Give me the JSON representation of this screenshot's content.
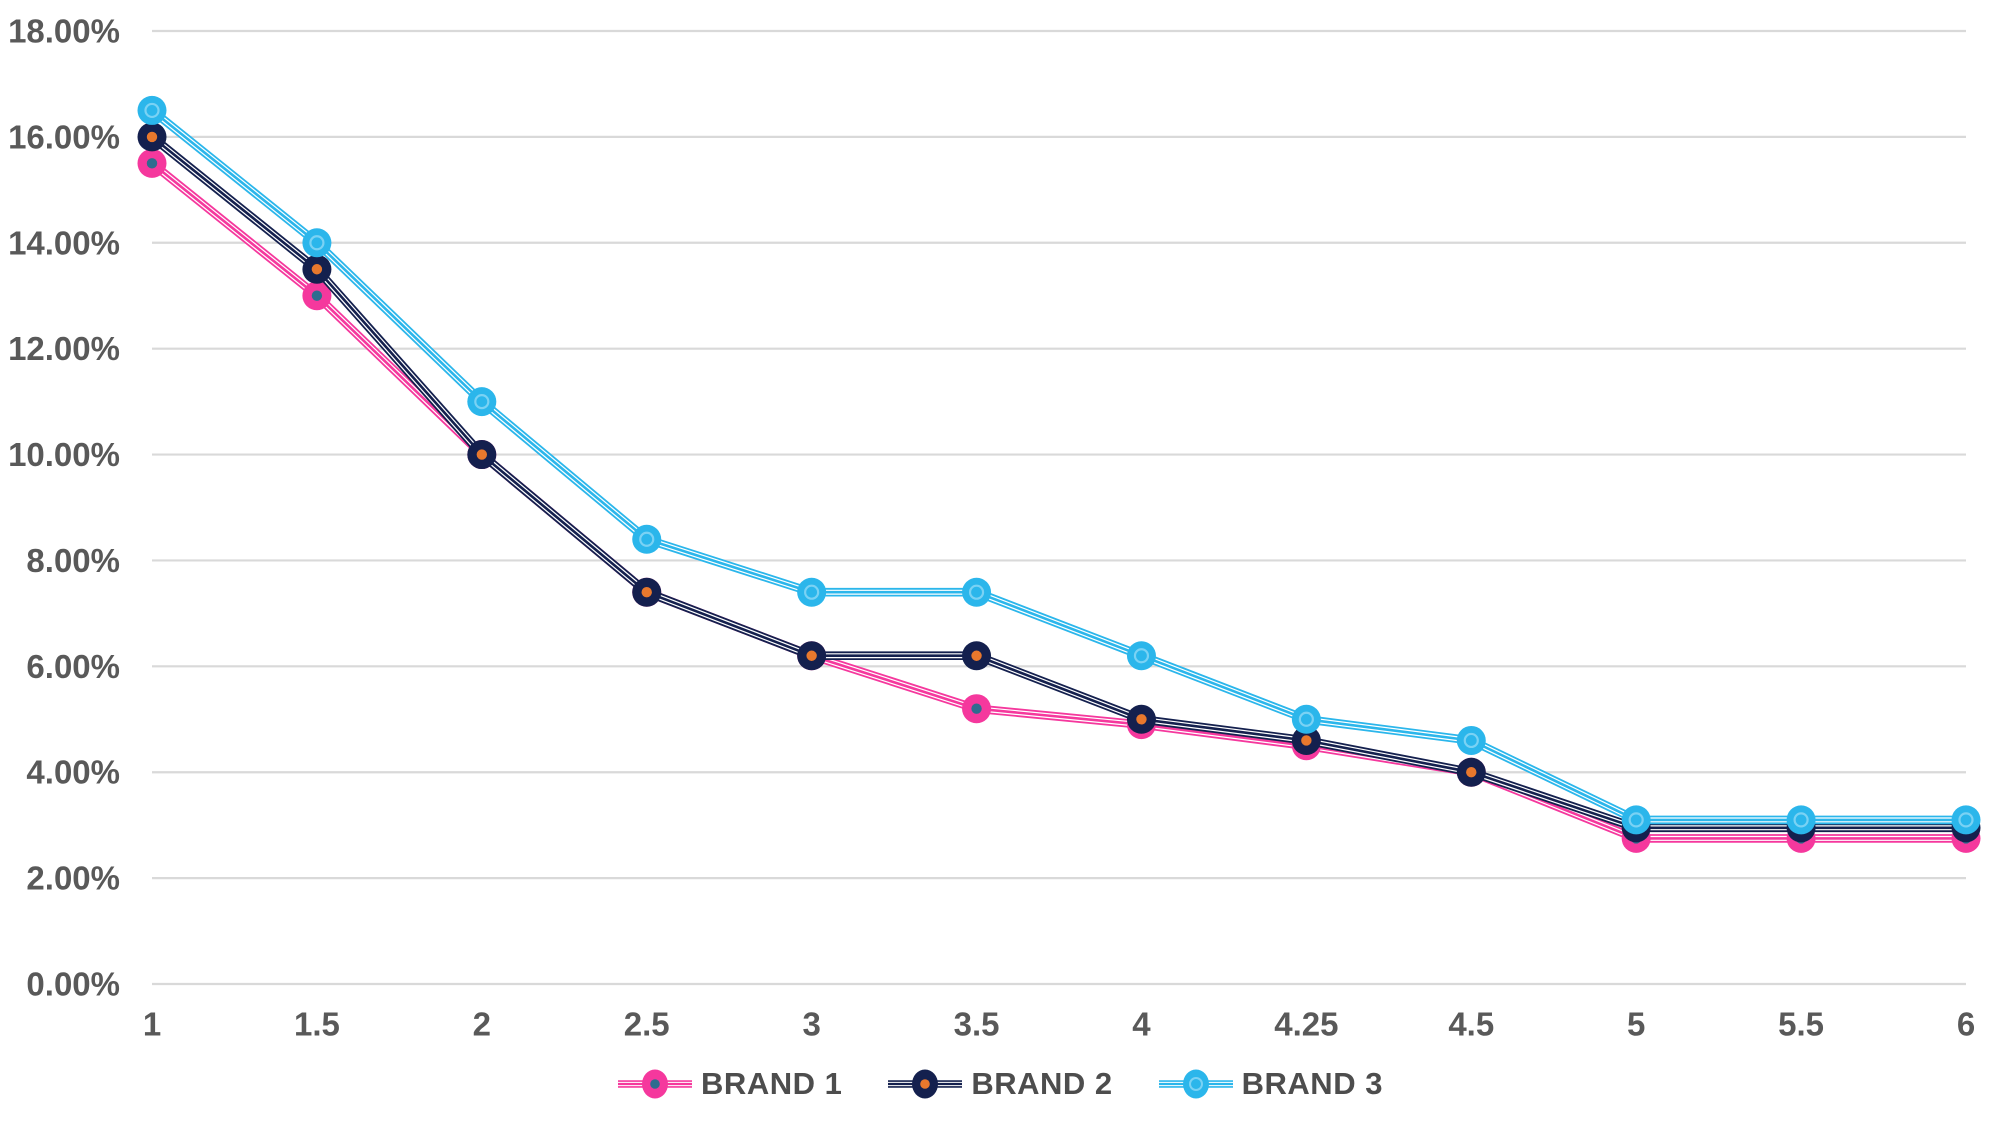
{
  "chart_data": {
    "type": "line",
    "title": "",
    "categories": [
      "1",
      "1.5",
      "2",
      "2.5",
      "3",
      "3.5",
      "4",
      "4.25",
      "4.5",
      "5",
      "5.5",
      "6"
    ],
    "series": [
      {
        "name": "BRAND 1",
        "color": "#F5389D",
        "marker_inner_style": "dot",
        "marker_inner_color": "#2F6C8F",
        "values": [
          15.5,
          13.0,
          10.0,
          7.4,
          6.2,
          5.2,
          4.9,
          4.5,
          4.0,
          2.75,
          2.75,
          2.75
        ]
      },
      {
        "name": "BRAND 2",
        "color": "#14204E",
        "marker_inner_style": "dot",
        "marker_inner_color": "#E8782D",
        "values": [
          16.0,
          13.5,
          10.0,
          7.4,
          6.2,
          6.2,
          5.0,
          4.6,
          4.0,
          2.95,
          2.95,
          2.95
        ]
      },
      {
        "name": "BRAND 3",
        "color": "#2BB6EB",
        "marker_inner_style": "ring",
        "marker_inner_color": "#7AD2F4",
        "values": [
          16.5,
          14.0,
          11.0,
          8.4,
          7.4,
          7.4,
          6.2,
          5.0,
          4.6,
          3.1,
          3.1,
          3.1
        ]
      }
    ],
    "y_axis": {
      "min": 0,
      "max": 18,
      "step": 2,
      "tick_labels": [
        "0.00%",
        "2.00%",
        "4.00%",
        "6.00%",
        "8.00%",
        "10.00%",
        "12.00%",
        "14.00%",
        "16.00%",
        "18.00%"
      ]
    },
    "x_axis": {
      "tick_labels": [
        "1",
        "1.5",
        "2",
        "2.5",
        "3",
        "3.5",
        "4",
        "4.25",
        "4.5",
        "5",
        "5.5",
        "6"
      ]
    },
    "grid": "horizontal",
    "legend_position": "bottom-center",
    "colors": {
      "background": "#FFFFFF",
      "gridline": "#D9D9D9",
      "axis_text": "#595959",
      "legend_text": "#4D4D4D",
      "line_gap_fill": "#FFFFFF"
    }
  }
}
